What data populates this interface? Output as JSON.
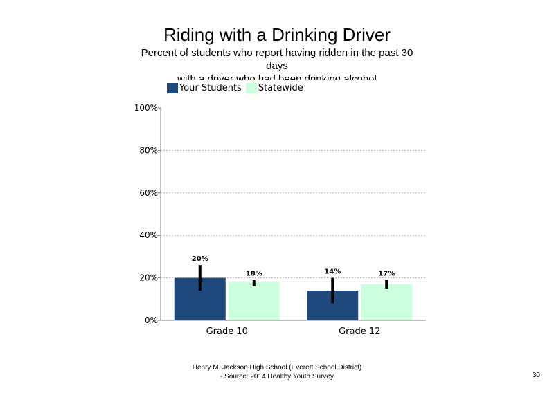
{
  "slide": {
    "page_number": "30"
  },
  "footer": {
    "line1": "Henry M. Jackson High School (Everett School District)",
    "line2": "- Source: 2014 Healthy Youth Survey"
  },
  "chart_data": {
    "type": "bar",
    "title": "Riding with a Drinking Driver",
    "subtitle_lines": [
      "Percent of students who report having ridden in the past 30",
      "days",
      "with a driver who had been drinking alcohol"
    ],
    "categories": [
      "Grade 10",
      "Grade 12"
    ],
    "series": [
      {
        "name": "Your Students",
        "color": "#1f497d",
        "values": [
          20,
          14
        ],
        "labels": [
          "20%",
          "14%"
        ],
        "error_low": [
          14,
          8
        ],
        "error_high": [
          26,
          20
        ]
      },
      {
        "name": "Statewide",
        "color": "#ccffdd",
        "values": [
          18,
          17
        ],
        "labels": [
          "18%",
          "17%"
        ],
        "error_low": [
          16,
          15
        ],
        "error_high": [
          19,
          19
        ]
      }
    ],
    "ylim": [
      0,
      100
    ],
    "yticks": [
      0,
      20,
      40,
      60,
      80,
      100
    ],
    "ytick_labels": [
      "0%",
      "20%",
      "40%",
      "60%",
      "80%",
      "100%"
    ],
    "grid": true,
    "legend_position": "top-left",
    "xlabel": "",
    "ylabel": ""
  }
}
